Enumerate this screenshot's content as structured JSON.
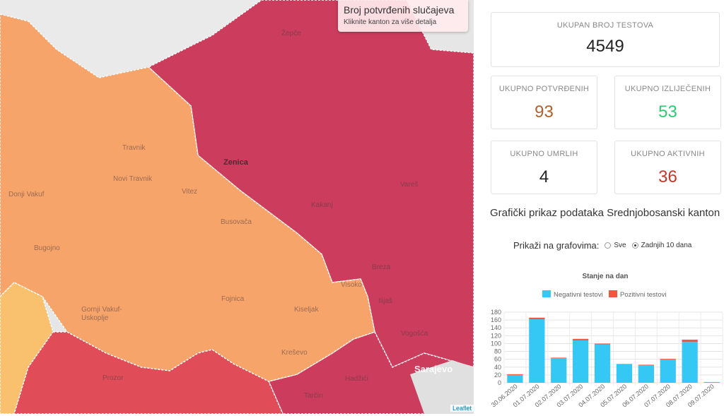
{
  "map": {
    "info_title": "Broj potvrđenih slučajeva",
    "info_subtitle": "Kliknite kanton za više detalja",
    "attribution": "Leaflet",
    "place_labels": [
      "Žepče",
      "Zenica",
      "Travnik",
      "Novi Travnik",
      "Vitez",
      "Donji Vakuf",
      "Busovača",
      "Kakanj",
      "Vareš",
      "Bugojno",
      "Breza",
      "Fojnica",
      "Kiseljak",
      "Gornji Vakuf-Uskoplje",
      "Kreševo",
      "Vogošća",
      "Sarajevo",
      "Hadžići",
      "Prozor",
      "Tarčin",
      "Ilijaš",
      "Visoko"
    ],
    "colors": {
      "orange": "#f7a46b",
      "crimson": "#cc3c5c",
      "red": "#e04c58",
      "yellow": "#f9c06e",
      "gray": "#e7e7e7"
    }
  },
  "stats": {
    "total_tests": {
      "label": "UKUPAN BROJ TESTOVA",
      "value": "4549",
      "color": "#222222"
    },
    "confirmed": {
      "label": "UKUPNO POTVRĐENIH",
      "value": "93",
      "color": "#b5602a"
    },
    "recovered": {
      "label": "UKUPNO IZLIJEČENIH",
      "value": "53",
      "color": "#2ecc71"
    },
    "deaths": {
      "label": "UKUPNO UMRLIH",
      "value": "4",
      "color": "#222222"
    },
    "active": {
      "label": "UKUPNO AKTIVNIH",
      "value": "36",
      "color": "#c0392b"
    }
  },
  "chart_section": {
    "heading": "Grafički prikaz podataka Srednjobosanski kanton",
    "filter_label": "Prikaži na grafovima:",
    "options": [
      {
        "label": "Sve",
        "selected": false
      },
      {
        "label": "Zadnjih 10 dana",
        "selected": true
      }
    ]
  },
  "chart_data": {
    "type": "bar",
    "stacked": true,
    "title": "Stanje na dan",
    "categories": [
      "30.06.2020",
      "01.07.2020",
      "02.07.2020",
      "03.07.2020",
      "04.07.2020",
      "05.07.2020",
      "06.07.2020",
      "07.07.2020",
      "08.07.2020",
      "09.07.2020"
    ],
    "series": [
      {
        "name": "Negativni testovi",
        "color": "#36c8f5",
        "values": [
          20,
          162,
          63,
          108,
          98,
          47,
          45,
          59,
          104,
          2
        ]
      },
      {
        "name": "Pozitivni testovi",
        "color": "#f5553c",
        "values": [
          2,
          4,
          1,
          4,
          2,
          1,
          1,
          2,
          6,
          0
        ]
      }
    ],
    "ylim": [
      0,
      180
    ],
    "yticks": [
      0,
      20,
      40,
      60,
      80,
      100,
      120,
      140,
      160,
      180
    ],
    "legend": "top",
    "grid": true
  }
}
